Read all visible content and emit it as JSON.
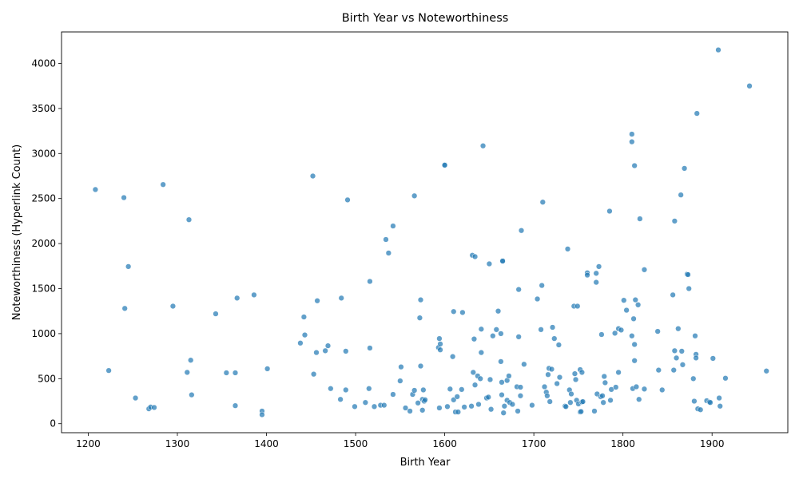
{
  "chart_data": {
    "type": "scatter",
    "title": "Birth Year vs Noteworthiness",
    "xlabel": "Birth Year",
    "ylabel": "Noteworthiness (Hyperlink Count)",
    "xlim": [
      1170,
      1985
    ],
    "ylim": [
      -100,
      4350
    ],
    "xticks": [
      1200,
      1300,
      1400,
      1500,
      1600,
      1700,
      1800,
      1900
    ],
    "xtick_labels": [
      "1200",
      "1300",
      "1400",
      "1500",
      "1600",
      "1700",
      "1800",
      "1900"
    ],
    "yticks": [
      0,
      500,
      1000,
      1500,
      2000,
      2500,
      3000,
      3500,
      4000
    ],
    "ytick_labels": [
      "0",
      "500",
      "1000",
      "1500",
      "2000",
      "2500",
      "3000",
      "3500",
      "4000"
    ],
    "grid": false,
    "legend": false,
    "point_color": "#1f77b4",
    "point_opacity": 0.7,
    "points": [
      [
        1208,
        2600
      ],
      [
        1223,
        590
      ],
      [
        1240,
        2510
      ],
      [
        1241,
        1280
      ],
      [
        1245,
        1745
      ],
      [
        1253,
        285
      ],
      [
        1268,
        165
      ],
      [
        1270,
        185
      ],
      [
        1274,
        180
      ],
      [
        1284,
        2655
      ],
      [
        1295,
        1305
      ],
      [
        1311,
        570
      ],
      [
        1313,
        2265
      ],
      [
        1315,
        705
      ],
      [
        1316,
        320
      ],
      [
        1343,
        1220
      ],
      [
        1355,
        565
      ],
      [
        1365,
        565
      ],
      [
        1365,
        200
      ],
      [
        1367,
        1395
      ],
      [
        1386,
        1430
      ],
      [
        1395,
        140
      ],
      [
        1395,
        100
      ],
      [
        1401,
        610
      ],
      [
        1438,
        895
      ],
      [
        1442,
        1185
      ],
      [
        1443,
        985
      ],
      [
        1452,
        2750
      ],
      [
        1453,
        550
      ],
      [
        1456,
        790
      ],
      [
        1457,
        1365
      ],
      [
        1466,
        810
      ],
      [
        1469,
        865
      ],
      [
        1472,
        390
      ],
      [
        1483,
        270
      ],
      [
        1484,
        1395
      ],
      [
        1489,
        375
      ],
      [
        1489,
        805
      ],
      [
        1491,
        2485
      ],
      [
        1499,
        190
      ],
      [
        1511,
        235
      ],
      [
        1515,
        390
      ],
      [
        1516,
        840
      ],
      [
        1516,
        1580
      ],
      [
        1521,
        190
      ],
      [
        1528,
        205
      ],
      [
        1532,
        205
      ],
      [
        1534,
        2045
      ],
      [
        1537,
        1895
      ],
      [
        1542,
        2195
      ],
      [
        1542,
        325
      ],
      [
        1550,
        475
      ],
      [
        1551,
        630
      ],
      [
        1556,
        175
      ],
      [
        1561,
        140
      ],
      [
        1564,
        325
      ],
      [
        1566,
        370
      ],
      [
        1566,
        2530
      ],
      [
        1570,
        230
      ],
      [
        1572,
        1175
      ],
      [
        1573,
        1375
      ],
      [
        1573,
        640
      ],
      [
        1575,
        270
      ],
      [
        1575,
        150
      ],
      [
        1576,
        375
      ],
      [
        1577,
        250
      ],
      [
        1578,
        265
      ],
      [
        1593,
        845
      ],
      [
        1594,
        945
      ],
      [
        1594,
        175
      ],
      [
        1595,
        820
      ],
      [
        1595,
        885
      ],
      [
        1600,
        2875
      ],
      [
        1600,
        2870
      ],
      [
        1603,
        190
      ],
      [
        1606,
        385
      ],
      [
        1609,
        745
      ],
      [
        1610,
        1245
      ],
      [
        1610,
        265
      ],
      [
        1612,
        130
      ],
      [
        1614,
        300
      ],
      [
        1615,
        130
      ],
      [
        1619,
        380
      ],
      [
        1620,
        1235
      ],
      [
        1622,
        185
      ],
      [
        1630,
        195
      ],
      [
        1631,
        1870
      ],
      [
        1632,
        570
      ],
      [
        1633,
        940
      ],
      [
        1634,
        1855
      ],
      [
        1634,
        430
      ],
      [
        1637,
        530
      ],
      [
        1638,
        215
      ],
      [
        1640,
        500
      ],
      [
        1641,
        790
      ],
      [
        1641,
        1050
      ],
      [
        1643,
        3085
      ],
      [
        1647,
        285
      ],
      [
        1649,
        295
      ],
      [
        1650,
        1775
      ],
      [
        1651,
        490
      ],
      [
        1652,
        160
      ],
      [
        1654,
        975
      ],
      [
        1658,
        1045
      ],
      [
        1660,
        1250
      ],
      [
        1663,
        690
      ],
      [
        1663,
        1000
      ],
      [
        1664,
        320
      ],
      [
        1664,
        460
      ],
      [
        1665,
        1810
      ],
      [
        1665,
        1805
      ],
      [
        1666,
        120
      ],
      [
        1667,
        195
      ],
      [
        1670,
        480
      ],
      [
        1670,
        260
      ],
      [
        1672,
        530
      ],
      [
        1673,
        235
      ],
      [
        1676,
        215
      ],
      [
        1681,
        410
      ],
      [
        1682,
        140
      ],
      [
        1683,
        1490
      ],
      [
        1683,
        965
      ],
      [
        1685,
        405
      ],
      [
        1685,
        310
      ],
      [
        1686,
        2145
      ],
      [
        1689,
        660
      ],
      [
        1698,
        205
      ],
      [
        1704,
        1385
      ],
      [
        1708,
        1045
      ],
      [
        1709,
        1535
      ],
      [
        1710,
        2460
      ],
      [
        1712,
        410
      ],
      [
        1714,
        350
      ],
      [
        1715,
        310
      ],
      [
        1716,
        545
      ],
      [
        1717,
        615
      ],
      [
        1718,
        245
      ],
      [
        1720,
        605
      ],
      [
        1721,
        1070
      ],
      [
        1723,
        945
      ],
      [
        1726,
        445
      ],
      [
        1728,
        875
      ],
      [
        1729,
        515
      ],
      [
        1735,
        195
      ],
      [
        1736,
        190
      ],
      [
        1738,
        1940
      ],
      [
        1740,
        375
      ],
      [
        1741,
        235
      ],
      [
        1742,
        330
      ],
      [
        1745,
        1305
      ],
      [
        1746,
        555
      ],
      [
        1747,
        490
      ],
      [
        1748,
        260
      ],
      [
        1749,
        1305
      ],
      [
        1750,
        220
      ],
      [
        1752,
        600
      ],
      [
        1752,
        130
      ],
      [
        1753,
        135
      ],
      [
        1754,
        570
      ],
      [
        1754,
        240
      ],
      [
        1755,
        245
      ],
      [
        1760,
        1675
      ],
      [
        1760,
        1650
      ],
      [
        1768,
        140
      ],
      [
        1770,
        1670
      ],
      [
        1770,
        1570
      ],
      [
        1771,
        330
      ],
      [
        1773,
        1745
      ],
      [
        1775,
        300
      ],
      [
        1776,
        990
      ],
      [
        1777,
        310
      ],
      [
        1778,
        235
      ],
      [
        1779,
        525
      ],
      [
        1780,
        455
      ],
      [
        1785,
        2360
      ],
      [
        1786,
        260
      ],
      [
        1787,
        380
      ],
      [
        1791,
        1005
      ],
      [
        1792,
        405
      ],
      [
        1795,
        1055
      ],
      [
        1795,
        570
      ],
      [
        1798,
        1040
      ],
      [
        1801,
        1370
      ],
      [
        1804,
        1260
      ],
      [
        1810,
        3215
      ],
      [
        1810,
        3130
      ],
      [
        1810,
        975
      ],
      [
        1811,
        390
      ],
      [
        1812,
        1165
      ],
      [
        1813,
        2865
      ],
      [
        1813,
        700
      ],
      [
        1813,
        880
      ],
      [
        1814,
        1375
      ],
      [
        1815,
        410
      ],
      [
        1817,
        1320
      ],
      [
        1818,
        270
      ],
      [
        1819,
        2275
      ],
      [
        1824,
        385
      ],
      [
        1824,
        1710
      ],
      [
        1839,
        1025
      ],
      [
        1840,
        595
      ],
      [
        1844,
        375
      ],
      [
        1856,
        1430
      ],
      [
        1857,
        595
      ],
      [
        1858,
        2250
      ],
      [
        1858,
        810
      ],
      [
        1860,
        730
      ],
      [
        1862,
        1055
      ],
      [
        1865,
        2540
      ],
      [
        1866,
        805
      ],
      [
        1867,
        655
      ],
      [
        1869,
        2835
      ],
      [
        1872,
        1660
      ],
      [
        1873,
        1655
      ],
      [
        1874,
        1500
      ],
      [
        1879,
        500
      ],
      [
        1880,
        250
      ],
      [
        1881,
        975
      ],
      [
        1882,
        770
      ],
      [
        1882,
        730
      ],
      [
        1883,
        3445
      ],
      [
        1884,
        165
      ],
      [
        1887,
        155
      ],
      [
        1894,
        255
      ],
      [
        1897,
        240
      ],
      [
        1898,
        235
      ],
      [
        1901,
        725
      ],
      [
        1907,
        4150
      ],
      [
        1908,
        285
      ],
      [
        1909,
        195
      ],
      [
        1915,
        505
      ],
      [
        1942,
        3750
      ],
      [
        1961,
        585
      ]
    ]
  }
}
